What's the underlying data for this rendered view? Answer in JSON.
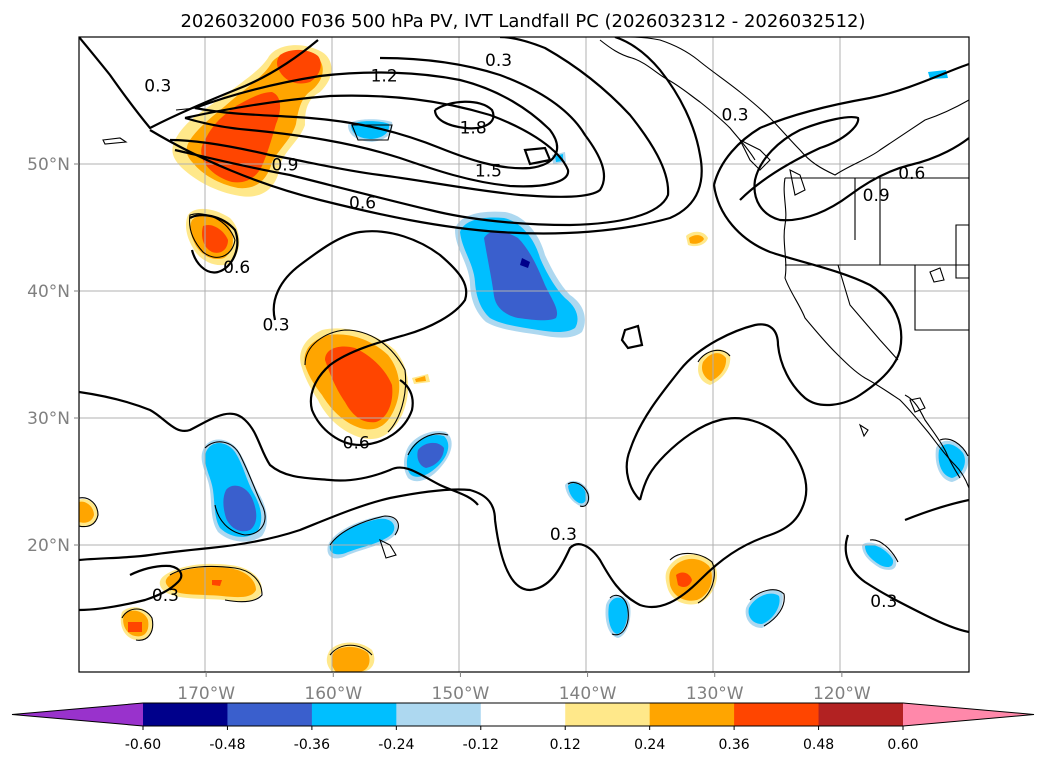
{
  "chart_data": {
    "type": "map",
    "title": "2026032000 F036 500 hPa PV, IVT Landfall PC (2026032312 - 2026032512)",
    "lon_range": [
      -180,
      -110
    ],
    "lat_range": [
      10,
      60
    ],
    "lon_ticks": [
      {
        "value": -170,
        "label": "170°W"
      },
      {
        "value": -160,
        "label": "160°W"
      },
      {
        "value": -150,
        "label": "150°W"
      },
      {
        "value": -140,
        "label": "140°W"
      },
      {
        "value": -130,
        "label": "130°W"
      },
      {
        "value": -120,
        "label": "120°W"
      }
    ],
    "lat_ticks": [
      {
        "value": 50,
        "label": "50°N"
      },
      {
        "value": 40,
        "label": "40°N"
      },
      {
        "value": 30,
        "label": "30°N"
      },
      {
        "value": 20,
        "label": "20°N"
      }
    ],
    "colorbar": {
      "levels": [
        "-0.60",
        "-0.48",
        "-0.36",
        "-0.24",
        "-0.12",
        "0.12",
        "0.24",
        "0.36",
        "0.48",
        "0.60"
      ],
      "colors": [
        "#9932cc",
        "#00008b",
        "#3a5fcd",
        "#00bfff",
        "#add8f0",
        "#ffffff",
        "#ffe88a",
        "#ffa500",
        "#ff4500",
        "#b22222",
        "#ff88aa"
      ],
      "extend": "both"
    },
    "pv_contour_labels": [
      {
        "text": "0.3",
        "lon": -173.8,
        "lat": 56.1
      },
      {
        "text": "1.2",
        "lon": -156.0,
        "lat": 56.9
      },
      {
        "text": "0.3",
        "lon": -147.0,
        "lat": 58.1
      },
      {
        "text": "1.8",
        "lon": -149.0,
        "lat": 52.8
      },
      {
        "text": "1.5",
        "lon": -147.8,
        "lat": 49.4
      },
      {
        "text": "0.9",
        "lon": -163.8,
        "lat": 49.9
      },
      {
        "text": "0.6",
        "lon": -157.7,
        "lat": 46.9
      },
      {
        "text": "0.3",
        "lon": -128.4,
        "lat": 53.8
      },
      {
        "text": "0.9",
        "lon": -117.3,
        "lat": 47.5
      },
      {
        "text": "0.6",
        "lon": -114.5,
        "lat": 49.2
      },
      {
        "text": "0.6",
        "lon": -167.6,
        "lat": 41.8
      },
      {
        "text": "0.3",
        "lon": -164.5,
        "lat": 37.3
      },
      {
        "text": "0.6",
        "lon": -158.2,
        "lat": 28.0
      },
      {
        "text": "0.3",
        "lon": -141.9,
        "lat": 20.8
      },
      {
        "text": "0.3",
        "lon": -116.7,
        "lat": 15.5
      },
      {
        "text": "0.3",
        "lon": -173.2,
        "lat": 16.0
      }
    ],
    "ivt_pc_features": [
      {
        "sign": "positive",
        "lon": -166.0,
        "lat": 52.5,
        "peak": 0.42
      },
      {
        "sign": "positive",
        "lon": -164.0,
        "lat": 56.5,
        "peak": 0.4
      },
      {
        "sign": "positive",
        "lon": -170.0,
        "lat": 44.5,
        "peak": 0.4
      },
      {
        "sign": "positive",
        "lon": -156.5,
        "lat": 32.5,
        "peak": 0.42
      },
      {
        "sign": "positive",
        "lon": -169.5,
        "lat": 17.0,
        "peak": 0.3
      },
      {
        "sign": "positive",
        "lon": -174.5,
        "lat": 13.8,
        "peak": 0.38
      },
      {
        "sign": "positive",
        "lon": -132.5,
        "lat": 17.0,
        "peak": 0.38
      },
      {
        "sign": "positive",
        "lon": -179.5,
        "lat": 22.7,
        "peak": 0.3
      },
      {
        "sign": "positive",
        "lon": -158.5,
        "lat": 11.0,
        "peak": 0.3
      },
      {
        "sign": "positive",
        "lon": -130.0,
        "lat": 34.0,
        "peak": 0.3
      },
      {
        "sign": "negative",
        "lon": -145.5,
        "lat": 40.5,
        "peak": -0.52
      },
      {
        "sign": "negative",
        "lon": -168.0,
        "lat": 23.5,
        "peak": -0.42
      },
      {
        "sign": "negative",
        "lon": -152.5,
        "lat": 27.5,
        "peak": -0.4
      },
      {
        "sign": "negative",
        "lon": -138.5,
        "lat": 14.5,
        "peak": -0.3
      },
      {
        "sign": "negative",
        "lon": -126.0,
        "lat": 15.0,
        "peak": -0.3
      },
      {
        "sign": "negative",
        "lon": -111.0,
        "lat": 27.5,
        "peak": -0.3
      },
      {
        "sign": "negative",
        "lon": -157.0,
        "lat": 20.5,
        "peak": -0.3
      }
    ]
  }
}
